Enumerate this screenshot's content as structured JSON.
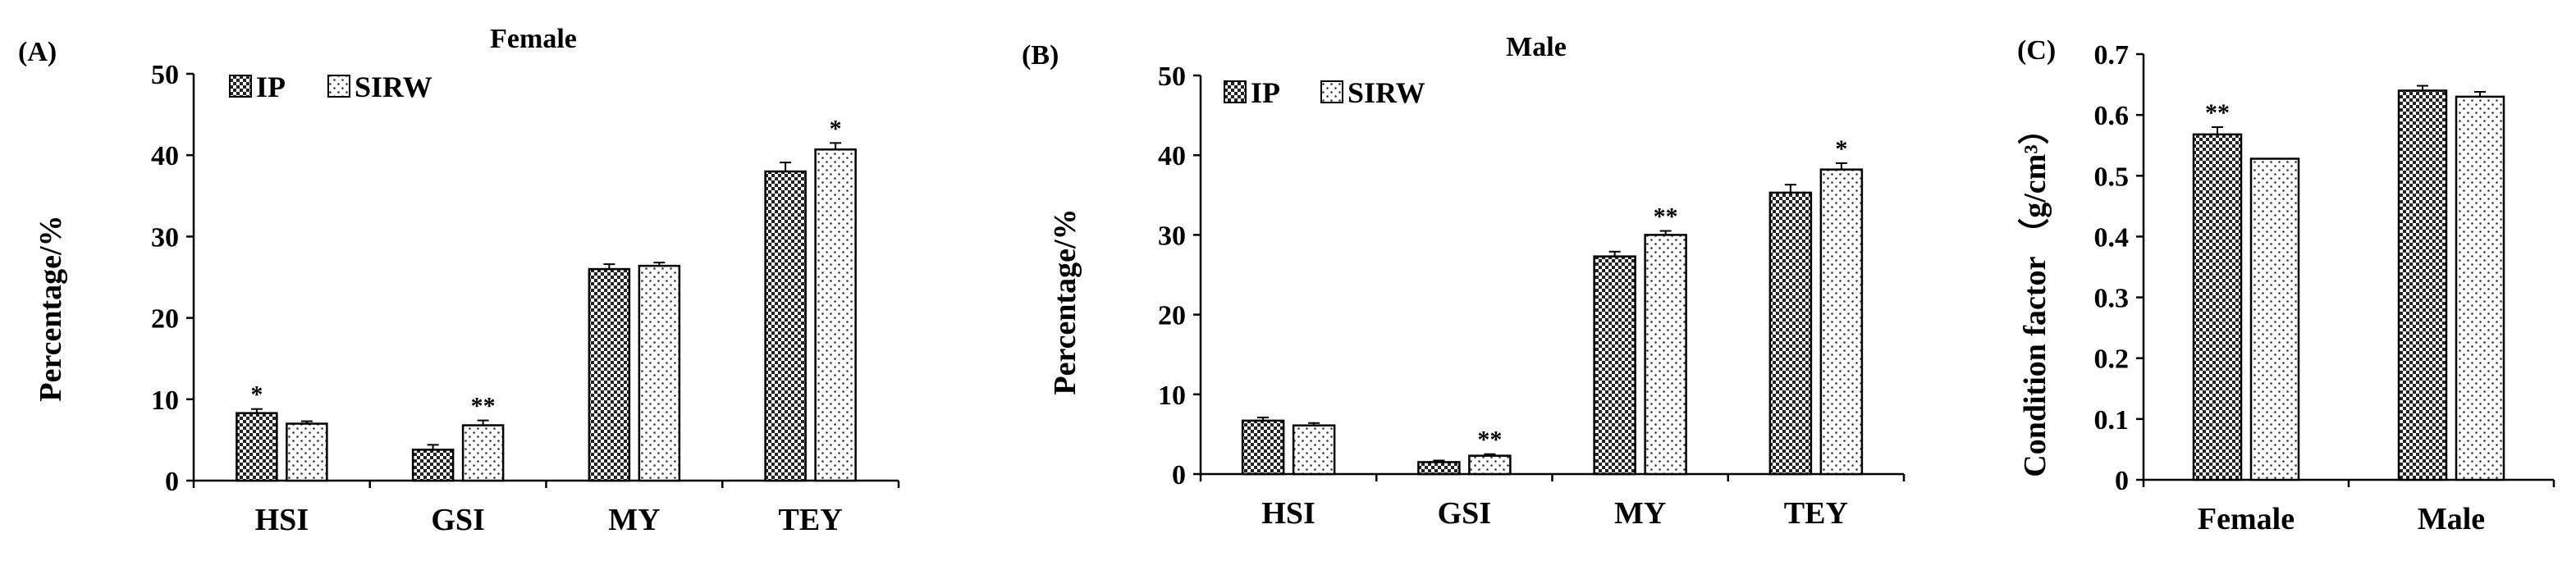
{
  "chart_data": [
    {
      "panel": "(A)",
      "type": "bar",
      "title": "Female",
      "xlabel": "",
      "ylabel": "Percentage/%",
      "ylim": [
        0,
        50
      ],
      "yticks": [
        0,
        10,
        20,
        30,
        40,
        50
      ],
      "categories": [
        "HSI",
        "GSI",
        "MY",
        "TEY"
      ],
      "series": [
        {
          "name": "IP",
          "pattern": "checker",
          "values": [
            8.3,
            3.8,
            26.0,
            38.0
          ],
          "errors": [
            0.5,
            0.6,
            0.6,
            1.1
          ]
        },
        {
          "name": "SIRW",
          "pattern": "dots",
          "values": [
            7.0,
            6.8,
            26.4,
            40.7
          ],
          "errors": [
            0.3,
            0.6,
            0.4,
            0.8
          ]
        }
      ],
      "annotations": [
        {
          "category": "HSI",
          "series": "IP",
          "text": "*"
        },
        {
          "category": "GSI",
          "series": "SIRW",
          "text": "**"
        },
        {
          "category": "TEY",
          "series": "SIRW",
          "text": "*"
        }
      ],
      "legend": "top-left",
      "grid": false
    },
    {
      "panel": "(B)",
      "type": "bar",
      "title": "Male",
      "xlabel": "",
      "ylabel": "Percentage/%",
      "ylim": [
        0,
        50
      ],
      "yticks": [
        0,
        10,
        20,
        30,
        40,
        50
      ],
      "categories": [
        "HSI",
        "GSI",
        "MY",
        "TEY"
      ],
      "series": [
        {
          "name": "IP",
          "pattern": "checker",
          "values": [
            6.7,
            1.5,
            27.3,
            35.3
          ],
          "errors": [
            0.4,
            0.2,
            0.6,
            1.0
          ]
        },
        {
          "name": "SIRW",
          "pattern": "dots",
          "values": [
            6.1,
            2.3,
            30.0,
            38.2
          ],
          "errors": [
            0.3,
            0.2,
            0.5,
            0.8
          ]
        }
      ],
      "annotations": [
        {
          "category": "GSI",
          "series": "SIRW",
          "text": "**"
        },
        {
          "category": "MY",
          "series": "SIRW",
          "text": "**"
        },
        {
          "category": "TEY",
          "series": "SIRW",
          "text": "*"
        }
      ],
      "legend": "top-left",
      "grid": false
    },
    {
      "panel": "(C)",
      "type": "bar",
      "title": "",
      "xlabel": "",
      "ylabel": "Condition factor （g/cm³）",
      "ylim": [
        0,
        0.7
      ],
      "yticks": [
        0,
        0.1,
        0.2,
        0.3,
        0.4,
        0.5,
        0.6,
        0.7
      ],
      "categories": [
        "Female",
        "Male"
      ],
      "series": [
        {
          "name": "IP",
          "pattern": "checker",
          "values": [
            0.568,
            0.64
          ],
          "errors": [
            0.012,
            0.008
          ]
        },
        {
          "name": "SIRW",
          "pattern": "dots",
          "values": [
            0.528,
            0.63
          ],
          "errors": [
            0.0,
            0.008
          ]
        }
      ],
      "annotations": [
        {
          "category": "Female",
          "series": "IP",
          "text": "**"
        }
      ],
      "legend": "none",
      "grid": false
    }
  ]
}
